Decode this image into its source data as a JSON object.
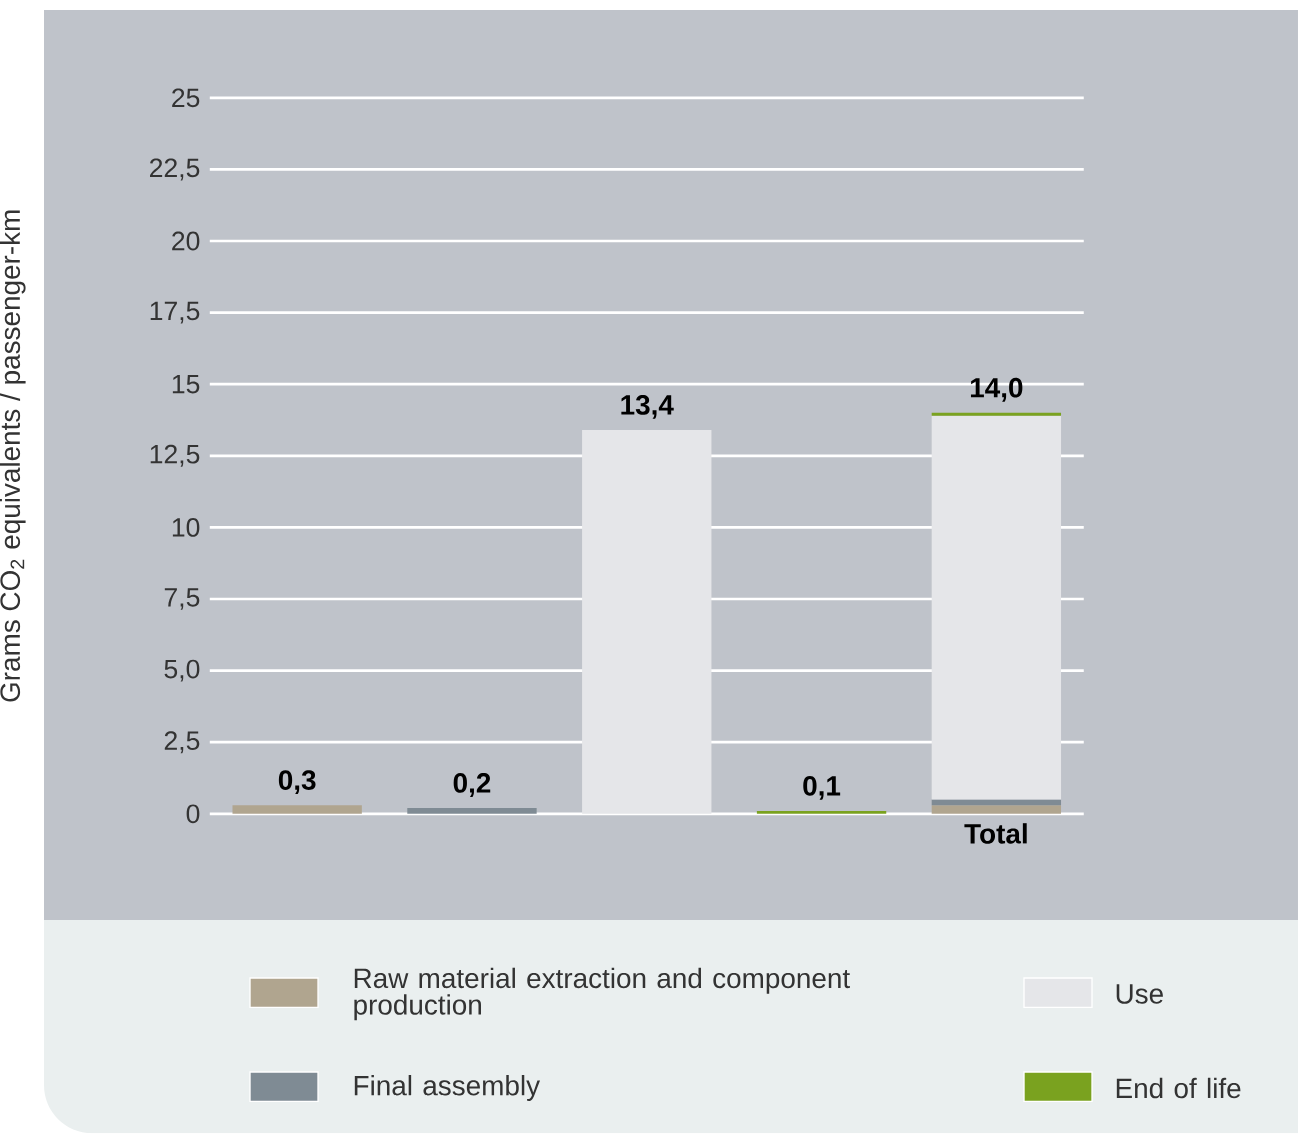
{
  "chart_data": {
    "type": "bar",
    "stacked": true,
    "ylabel": "Grams CO$_{2}$ equivalents / passenger-km",
    "categories": [
      null,
      null,
      null,
      null,
      "Total"
    ],
    "series": [
      {
        "name": "Raw material extraction and component production",
        "color": "#b0a58f",
        "values": [
          0.3,
          null,
          null,
          null,
          0.3
        ]
      },
      {
        "name": "Final assembly",
        "color": "#7f8b94",
        "values": [
          null,
          0.2,
          null,
          null,
          0.2
        ]
      },
      {
        "name": "Use",
        "color": "#e5e6e9",
        "values": [
          null,
          null,
          13.4,
          null,
          13.4
        ]
      },
      {
        "name": "End of life",
        "color": "#7aa21f",
        "values": [
          null,
          null,
          null,
          0.1,
          0.1
        ]
      }
    ],
    "totals": [
      "0,3",
      "0,2",
      "13,4",
      "0,1",
      "14,0"
    ],
    "ylim": [
      0,
      25
    ],
    "yticks": [
      0,
      {
        "value": 2.5,
        "label": "2,5"
      },
      {
        "value": 5,
        "label": "5,0"
      },
      {
        "value": 7.5,
        "label": "7,5"
      },
      10,
      {
        "value": 12.5,
        "label": "12,5"
      },
      15,
      {
        "value": 17.5,
        "label": "17,5"
      },
      20,
      {
        "value": 22.5,
        "label": "22,5"
      },
      25
    ],
    "grid": "y",
    "legend": "bottom"
  }
}
